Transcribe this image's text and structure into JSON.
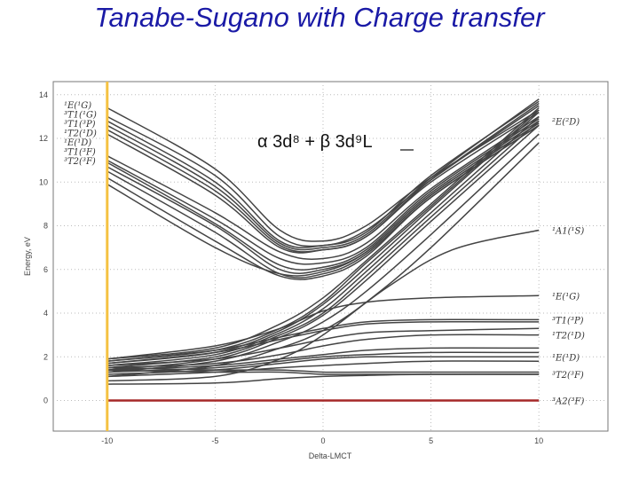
{
  "page_title": "Tanabe-Sugano with Charge transfer",
  "chart_data": {
    "type": "line",
    "xlabel": "Delta-LMCT",
    "ylabel": "Energy, eV",
    "xlim": [
      -12.5,
      13.2
    ],
    "ylim": [
      -1.4,
      14.6
    ],
    "xticks": [
      "-10",
      "-5",
      "0",
      "5",
      "10"
    ],
    "yticks": [
      "0",
      "2",
      "4",
      "6",
      "8",
      "10",
      "12",
      "14"
    ],
    "annotation": "α 3d⁸ + β 3d⁹L",
    "highlight_x": -10,
    "grid": "dotted",
    "colors": {
      "curves": "#444444",
      "ground": "#a52828",
      "highlight": "#f5c242"
    },
    "left_terms": [
      "¹E(¹G)",
      "³T1(¹G)",
      "³T1(³P)",
      "¹T2(¹D)",
      "¹E(¹D)",
      "³T1(³F)",
      "³T2(³F)"
    ],
    "right_terms": [
      {
        "label": "²E(²D)",
        "y": 12.8
      },
      {
        "label": "¹A1(¹S)",
        "y": 7.8
      },
      {
        "label": "¹E(¹G)",
        "y": 4.8
      },
      {
        "label": "³T1(³P)",
        "y": 3.7
      },
      {
        "label": "¹T2(¹D)",
        "y": 3.0
      },
      {
        "label": "¹E(¹D)",
        "y": 2.0
      },
      {
        "label": "³T2(³F)",
        "y": 1.2
      },
      {
        "label": "³A2(³F)",
        "y": 0.0
      }
    ],
    "series": [
      {
        "values": [
          [
            -10,
            13.4
          ],
          [
            -5,
            10.6
          ],
          [
            -2,
            7.8
          ],
          [
            0,
            7.3
          ],
          [
            2,
            8.0
          ],
          [
            5,
            10.2
          ],
          [
            10,
            13.3
          ]
        ]
      },
      {
        "values": [
          [
            -10,
            13.0
          ],
          [
            -5,
            10.3
          ],
          [
            -2,
            7.5
          ],
          [
            0,
            7.1
          ],
          [
            2,
            7.8
          ],
          [
            5,
            10.1
          ],
          [
            10,
            13.5
          ]
        ]
      },
      {
        "values": [
          [
            -10,
            12.8
          ],
          [
            -5,
            10.0
          ],
          [
            -2,
            7.3
          ],
          [
            0,
            7.1
          ],
          [
            2,
            7.7
          ],
          [
            5,
            10.3
          ],
          [
            10,
            13.7
          ]
        ]
      },
      {
        "values": [
          [
            -10,
            12.6
          ],
          [
            -5,
            9.8
          ],
          [
            -2,
            7.2
          ],
          [
            0,
            7.0
          ],
          [
            2,
            7.6
          ],
          [
            5,
            10.2
          ],
          [
            10,
            13.8
          ]
        ]
      },
      {
        "values": [
          [
            -10,
            12.4
          ],
          [
            -5,
            9.6
          ],
          [
            -2,
            7.1
          ],
          [
            0,
            6.9
          ],
          [
            2,
            7.5
          ],
          [
            5,
            10.1
          ],
          [
            10,
            13.6
          ]
        ]
      },
      {
        "values": [
          [
            -10,
            12.2
          ],
          [
            -5,
            9.4
          ],
          [
            -2,
            7.0
          ],
          [
            0,
            6.9
          ],
          [
            2,
            7.5
          ],
          [
            5,
            10.0
          ],
          [
            10,
            13.2
          ]
        ]
      },
      {
        "values": [
          [
            -10,
            11.2
          ],
          [
            -5,
            8.6
          ],
          [
            -2,
            6.8
          ],
          [
            0,
            6.5
          ],
          [
            2,
            7.2
          ],
          [
            5,
            9.7
          ],
          [
            10,
            13.0
          ]
        ]
      },
      {
        "values": [
          [
            -10,
            11.0
          ],
          [
            -5,
            8.3
          ],
          [
            -2,
            6.5
          ],
          [
            0,
            6.3
          ],
          [
            2,
            7.0
          ],
          [
            5,
            9.6
          ],
          [
            10,
            12.9
          ]
        ]
      },
      {
        "values": [
          [
            -10,
            10.9
          ],
          [
            -5,
            8.1
          ],
          [
            -2,
            6.2
          ],
          [
            0,
            6.1
          ],
          [
            2,
            6.9
          ],
          [
            5,
            9.5
          ],
          [
            10,
            12.8
          ]
        ]
      },
      {
        "values": [
          [
            -10,
            10.7
          ],
          [
            -5,
            8.0
          ],
          [
            -2,
            6.0
          ],
          [
            0,
            6.0
          ],
          [
            2,
            6.8
          ],
          [
            5,
            9.4
          ],
          [
            10,
            12.7
          ]
        ]
      },
      {
        "values": [
          [
            -10,
            10.5
          ],
          [
            -5,
            7.7
          ],
          [
            -2,
            5.8
          ],
          [
            0,
            5.8
          ],
          [
            2,
            6.7
          ],
          [
            5,
            9.3
          ],
          [
            10,
            12.6
          ]
        ]
      },
      {
        "values": [
          [
            -10,
            10.2
          ],
          [
            -5,
            7.3
          ],
          [
            -2,
            5.7
          ],
          [
            0,
            5.7
          ],
          [
            2,
            6.6
          ],
          [
            5,
            9.3
          ],
          [
            10,
            12.6
          ]
        ]
      },
      {
        "values": [
          [
            -10,
            9.9
          ],
          [
            -5,
            7.0
          ],
          [
            -2,
            5.8
          ],
          [
            0,
            5.9
          ],
          [
            2,
            6.8
          ],
          [
            5,
            9.4
          ],
          [
            10,
            12.7
          ]
        ]
      },
      {
        "values": [
          [
            -10,
            1.9
          ],
          [
            -5,
            2.4
          ],
          [
            -2,
            3.5
          ],
          [
            0,
            4.7
          ],
          [
            2,
            6.4
          ],
          [
            5,
            9.0
          ],
          [
            10,
            13.4
          ]
        ]
      },
      {
        "values": [
          [
            -10,
            1.8
          ],
          [
            -5,
            2.3
          ],
          [
            -2,
            3.3
          ],
          [
            0,
            4.5
          ],
          [
            2,
            6.3
          ],
          [
            5,
            8.9
          ],
          [
            10,
            13.3
          ]
        ]
      },
      {
        "values": [
          [
            -10,
            1.7
          ],
          [
            -5,
            2.2
          ],
          [
            -2,
            3.2
          ],
          [
            0,
            4.4
          ],
          [
            2,
            6.1
          ],
          [
            5,
            8.8
          ],
          [
            10,
            13.2
          ]
        ]
      },
      {
        "values": [
          [
            -10,
            1.6
          ],
          [
            -5,
            2.1
          ],
          [
            -2,
            3.1
          ],
          [
            0,
            4.2
          ],
          [
            2,
            5.9
          ],
          [
            5,
            8.6
          ],
          [
            10,
            13.0
          ]
        ]
      },
      {
        "values": [
          [
            -10,
            1.5
          ],
          [
            -5,
            2.0
          ],
          [
            -2,
            3.0
          ],
          [
            0,
            4.0
          ],
          [
            2,
            5.7
          ],
          [
            5,
            8.4
          ],
          [
            10,
            12.8
          ]
        ]
      },
      {
        "values": [
          [
            -10,
            1.4
          ],
          [
            -5,
            1.9
          ],
          [
            -2,
            2.9
          ],
          [
            0,
            3.9
          ],
          [
            2,
            5.5
          ],
          [
            5,
            8.2
          ],
          [
            10,
            12.6
          ]
        ]
      },
      {
        "values": [
          [
            -10,
            1.3
          ],
          [
            -5,
            1.8
          ],
          [
            -2,
            2.7
          ],
          [
            0,
            3.6
          ],
          [
            2,
            5.0
          ],
          [
            5,
            7.6
          ],
          [
            10,
            12.2
          ]
        ]
      },
      {
        "values": [
          [
            -10,
            1.1
          ],
          [
            -5,
            1.6
          ],
          [
            -2,
            2.4
          ],
          [
            0,
            3.2
          ],
          [
            2,
            4.5
          ],
          [
            5,
            7.0
          ],
          [
            10,
            11.8
          ]
        ]
      },
      {
        "values": [
          [
            -10,
            0.9
          ],
          [
            -5,
            1.1
          ],
          [
            -2,
            1.9
          ],
          [
            0,
            3.0
          ],
          [
            3,
            5.2
          ],
          [
            6,
            6.9
          ],
          [
            10,
            7.8
          ]
        ]
      },
      {
        "values": [
          [
            -10,
            1.9
          ],
          [
            -5,
            2.5
          ],
          [
            -2,
            3.3
          ],
          [
            0,
            4.1
          ],
          [
            2,
            4.5
          ],
          [
            5,
            4.7
          ],
          [
            10,
            4.8
          ]
        ]
      },
      {
        "values": [
          [
            -10,
            1.8
          ],
          [
            -5,
            2.3
          ],
          [
            -2,
            2.9
          ],
          [
            0,
            3.3
          ],
          [
            2,
            3.6
          ],
          [
            5,
            3.7
          ],
          [
            10,
            3.7
          ]
        ]
      },
      {
        "values": [
          [
            -10,
            1.7
          ],
          [
            -5,
            2.2
          ],
          [
            -2,
            2.8
          ],
          [
            0,
            3.2
          ],
          [
            2,
            3.5
          ],
          [
            5,
            3.6
          ],
          [
            10,
            3.6
          ]
        ]
      },
      {
        "values": [
          [
            -10,
            1.6
          ],
          [
            -5,
            1.9
          ],
          [
            -2,
            2.4
          ],
          [
            0,
            2.8
          ],
          [
            2,
            3.1
          ],
          [
            5,
            3.2
          ],
          [
            10,
            3.3
          ]
        ]
      },
      {
        "values": [
          [
            -10,
            1.5
          ],
          [
            -5,
            1.7
          ],
          [
            -2,
            2.1
          ],
          [
            0,
            2.5
          ],
          [
            2,
            2.8
          ],
          [
            5,
            3.0
          ],
          [
            10,
            3.0
          ]
        ]
      },
      {
        "values": [
          [
            -10,
            1.4
          ],
          [
            -5,
            1.6
          ],
          [
            -2,
            1.9
          ],
          [
            0,
            2.1
          ],
          [
            2,
            2.3
          ],
          [
            5,
            2.4
          ],
          [
            10,
            2.4
          ]
        ]
      },
      {
        "values": [
          [
            -10,
            1.3
          ],
          [
            -5,
            1.5
          ],
          [
            -2,
            1.8
          ],
          [
            0,
            2.0
          ],
          [
            2,
            2.1
          ],
          [
            5,
            2.2
          ],
          [
            10,
            2.2
          ]
        ]
      },
      {
        "values": [
          [
            -10,
            1.2
          ],
          [
            -5,
            1.4
          ],
          [
            -2,
            1.7
          ],
          [
            0,
            1.9
          ],
          [
            2,
            2.0
          ],
          [
            5,
            2.0
          ],
          [
            10,
            2.0
          ]
        ]
      },
      {
        "values": [
          [
            -10,
            1.1
          ],
          [
            -5,
            1.3
          ],
          [
            -2,
            1.5
          ],
          [
            0,
            1.6
          ],
          [
            2,
            1.7
          ],
          [
            5,
            1.8
          ],
          [
            10,
            1.8
          ]
        ]
      },
      {
        "values": [
          [
            -10,
            1.5
          ],
          [
            -5,
            1.4
          ],
          [
            -2,
            1.4
          ],
          [
            0,
            1.3
          ],
          [
            2,
            1.3
          ],
          [
            5,
            1.3
          ],
          [
            10,
            1.3
          ]
        ]
      },
      {
        "values": [
          [
            -10,
            1.4
          ],
          [
            -5,
            1.3
          ],
          [
            -2,
            1.3
          ],
          [
            0,
            1.2
          ],
          [
            2,
            1.2
          ],
          [
            5,
            1.2
          ],
          [
            10,
            1.2
          ]
        ]
      },
      {
        "values": [
          [
            -10,
            0.75
          ],
          [
            -5,
            0.8
          ],
          [
            -2,
            1.0
          ],
          [
            0,
            1.1
          ],
          [
            2,
            1.15
          ],
          [
            5,
            1.2
          ],
          [
            10,
            1.2
          ]
        ]
      },
      {
        "values": [
          [
            -10,
            0.0
          ],
          [
            -5,
            0.0
          ],
          [
            0,
            0.0
          ],
          [
            5,
            0.0
          ],
          [
            10,
            0.0
          ]
        ],
        "ground": true
      }
    ]
  }
}
